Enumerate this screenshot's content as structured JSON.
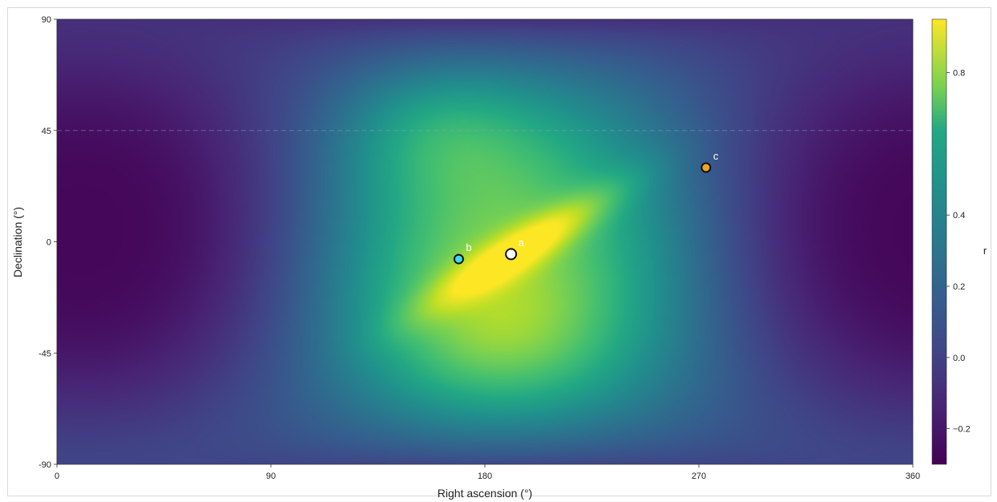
{
  "chart_data": {
    "type": "heatmap",
    "xlabel": "Right ascension (°)",
    "ylabel": "Declination (°)",
    "xlim": [
      0,
      360
    ],
    "ylim": [
      -90,
      90
    ],
    "xticks": [
      "0",
      "90",
      "180",
      "270",
      "360"
    ],
    "xtick_values": [
      0,
      90,
      180,
      270,
      360
    ],
    "yticks": [
      "90",
      "45",
      "0",
      "-45",
      "-90"
    ],
    "ytick_values": [
      90,
      45,
      0,
      -45,
      -90
    ],
    "colorbar": {
      "label": "r",
      "range": [
        -0.3,
        0.95
      ],
      "ticks": [
        "0.8",
        "0.4",
        "0.2",
        "0.0",
        "−0.2"
      ],
      "tick_values": [
        0.8,
        0.4,
        0.2,
        0.0,
        -0.2
      ],
      "colormap": "viridis"
    },
    "reference_line": {
      "dec": 45,
      "style": "dashed"
    },
    "points": [
      {
        "label": "a",
        "ra": 191,
        "dec": -5,
        "color": "#ffffff"
      },
      {
        "label": "b",
        "ra": 169,
        "dec": -7,
        "color": "#3fd8ee"
      },
      {
        "label": "c",
        "ra": 273,
        "dec": 30,
        "color": "#f0a52a"
      }
    ]
  }
}
